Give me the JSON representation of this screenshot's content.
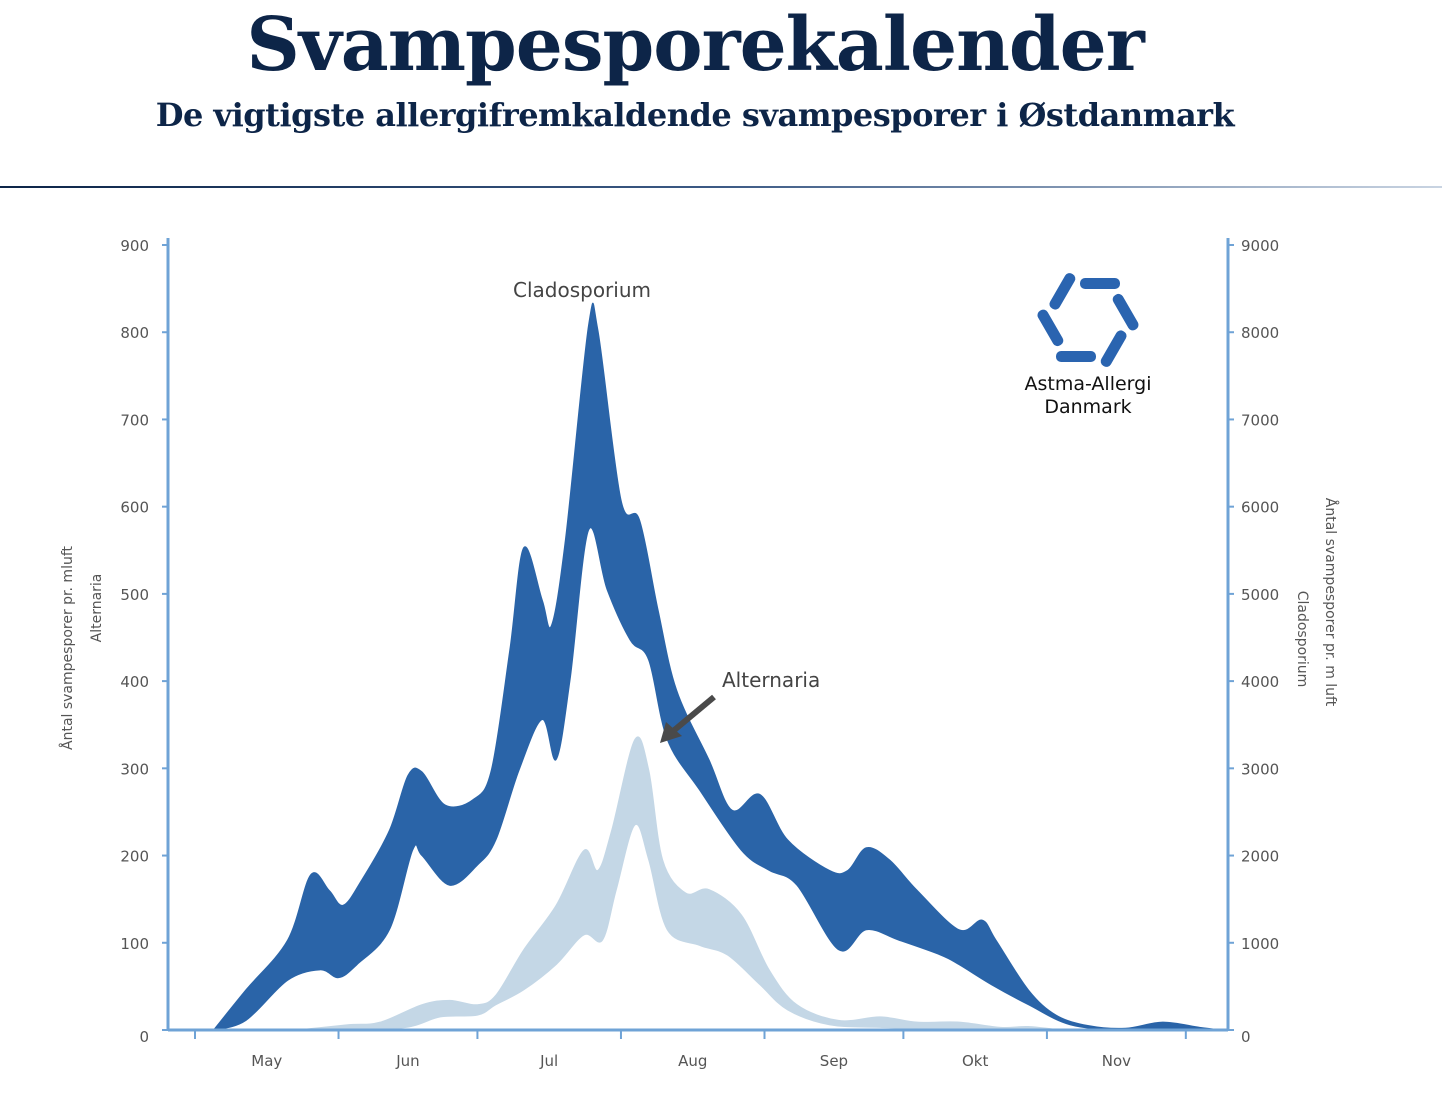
{
  "header": {
    "title": "Svampesporekalender",
    "subtitle": "De vigtigste allergifremkaldende svampesporer i Østdanmark"
  },
  "logo": {
    "line1": "Astma-Allergi",
    "line2": "Danmark",
    "color": "#2a64b0"
  },
  "chart_data": {
    "type": "area",
    "title": "",
    "x_tick_labels": [
      "May",
      "Jun",
      "Jul",
      "Aug",
      "Sep",
      "Okt",
      "Nov"
    ],
    "y_left": {
      "label_line1": "Åntal svampesporer pr. mluft",
      "label_line2": "Alternaria",
      "ylim": [
        0,
        900
      ],
      "ticks": [
        "0",
        "100",
        "200",
        "300",
        "400",
        "500",
        "600",
        "700",
        "800",
        "900"
      ]
    },
    "y_right": {
      "label_line1": "Åntal svampesporer pr. m luft",
      "label_line2": "Cladosporium",
      "ylim": [
        0,
        9000
      ],
      "ticks": [
        "0",
        "1000",
        "2000",
        "3000",
        "4000",
        "5000",
        "6000",
        "7000",
        "8000",
        "9000"
      ]
    },
    "grid": false,
    "annotations": {
      "cladosporium": "Cladosporium",
      "alternaria": "Alternaria"
    },
    "series": [
      {
        "name": "Cladosporium",
        "axis": "right",
        "color": "#2a64a8",
        "upper": [
          [
            "05-05",
            0
          ],
          [
            "05-12",
            460
          ],
          [
            "05-21",
            1030
          ],
          [
            "05-26",
            1780
          ],
          [
            "05-30",
            1600
          ],
          [
            "06-02",
            1430
          ],
          [
            "06-06",
            1720
          ],
          [
            "06-12",
            2290
          ],
          [
            "06-16",
            2920
          ],
          [
            "06-19",
            2960
          ],
          [
            "06-24",
            2580
          ],
          [
            "06-30",
            2640
          ],
          [
            "07-04",
            2980
          ],
          [
            "07-08",
            4360
          ],
          [
            "07-11",
            5530
          ],
          [
            "07-15",
            4930
          ],
          [
            "07-17",
            4640
          ],
          [
            "07-20",
            5620
          ],
          [
            "07-25",
            8080
          ],
          [
            "07-27",
            8030
          ],
          [
            "08-01",
            6080
          ],
          [
            "08-05",
            5850
          ],
          [
            "08-09",
            4820
          ],
          [
            "08-13",
            3900
          ],
          [
            "08-20",
            3100
          ],
          [
            "08-25",
            2520
          ],
          [
            "08-31",
            2700
          ],
          [
            "09-06",
            2180
          ],
          [
            "09-15",
            1830
          ],
          [
            "09-19",
            1830
          ],
          [
            "09-23",
            2090
          ],
          [
            "09-28",
            1950
          ],
          [
            "10-04",
            1600
          ],
          [
            "10-13",
            1150
          ],
          [
            "10-18",
            1260
          ],
          [
            "10-21",
            1030
          ],
          [
            "10-28",
            460
          ],
          [
            "11-03",
            170
          ],
          [
            "11-10",
            50
          ],
          [
            "11-18",
            20
          ],
          [
            "11-26",
            90
          ],
          [
            "12-04",
            30
          ],
          [
            "12-09",
            0
          ]
        ],
        "lower": [
          [
            "05-05",
            0
          ],
          [
            "05-12",
            110
          ],
          [
            "05-21",
            570
          ],
          [
            "05-28",
            690
          ],
          [
            "06-01",
            600
          ],
          [
            "06-05",
            750
          ],
          [
            "06-12",
            1150
          ],
          [
            "06-17",
            2060
          ],
          [
            "06-19",
            2000
          ],
          [
            "06-25",
            1660
          ],
          [
            "07-01",
            1890
          ],
          [
            "07-05",
            2180
          ],
          [
            "07-10",
            2980
          ],
          [
            "07-15",
            3560
          ],
          [
            "07-18",
            3100
          ],
          [
            "07-21",
            4010
          ],
          [
            "07-25",
            5730
          ],
          [
            "07-29",
            5050
          ],
          [
            "08-03",
            4470
          ],
          [
            "08-07",
            4240
          ],
          [
            "08-11",
            3330
          ],
          [
            "08-18",
            2750
          ],
          [
            "08-27",
            2060
          ],
          [
            "09-02",
            1830
          ],
          [
            "09-08",
            1660
          ],
          [
            "09-17",
            920
          ],
          [
            "09-23",
            1150
          ],
          [
            "09-30",
            1030
          ],
          [
            "10-09",
            860
          ],
          [
            "10-13",
            750
          ],
          [
            "10-20",
            520
          ],
          [
            "10-28",
            290
          ],
          [
            "11-06",
            60
          ],
          [
            "11-17",
            0
          ],
          [
            "11-25",
            20
          ],
          [
            "12-04",
            0
          ],
          [
            "12-09",
            0
          ]
        ]
      },
      {
        "name": "Alternaria",
        "axis": "left",
        "color": "#c4d7e6",
        "upper": [
          [
            "05-23",
            0
          ],
          [
            "06-03",
            6
          ],
          [
            "06-10",
            9
          ],
          [
            "06-19",
            29
          ],
          [
            "06-25",
            34
          ],
          [
            "07-01",
            29
          ],
          [
            "07-05",
            40
          ],
          [
            "07-11",
            92
          ],
          [
            "07-18",
            143
          ],
          [
            "07-24",
            206
          ],
          [
            "07-27",
            183
          ],
          [
            "07-30",
            229
          ],
          [
            "08-04",
            333
          ],
          [
            "08-07",
            298
          ],
          [
            "08-10",
            195
          ],
          [
            "08-15",
            157
          ],
          [
            "08-20",
            161
          ],
          [
            "08-27",
            132
          ],
          [
            "09-02",
            69
          ],
          [
            "09-08",
            29
          ],
          [
            "09-17",
            11
          ],
          [
            "09-26",
            15
          ],
          [
            "10-04",
            9
          ],
          [
            "10-13",
            9
          ],
          [
            "10-22",
            3
          ],
          [
            "10-28",
            4
          ],
          [
            "11-04",
            0
          ]
        ],
        "lower": [
          [
            "05-23",
            0
          ],
          [
            "06-14",
            2
          ],
          [
            "06-23",
            15
          ],
          [
            "07-01",
            17
          ],
          [
            "07-05",
            29
          ],
          [
            "07-11",
            46
          ],
          [
            "07-18",
            75
          ],
          [
            "07-24",
            109
          ],
          [
            "07-28",
            103
          ],
          [
            "07-31",
            161
          ],
          [
            "08-04",
            235
          ],
          [
            "08-07",
            195
          ],
          [
            "08-11",
            115
          ],
          [
            "08-18",
            97
          ],
          [
            "08-24",
            86
          ],
          [
            "08-31",
            52
          ],
          [
            "09-06",
            23
          ],
          [
            "09-15",
            6
          ],
          [
            "09-26",
            3
          ],
          [
            "10-13",
            0
          ],
          [
            "11-04",
            0
          ]
        ]
      }
    ]
  }
}
